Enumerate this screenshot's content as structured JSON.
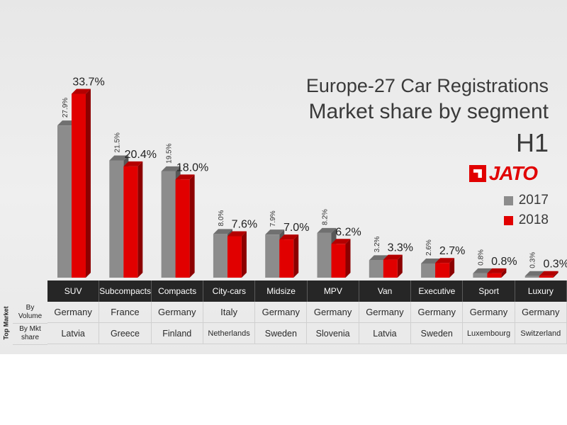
{
  "title": {
    "line1": "Europe-27 Car Registrations",
    "line2": "Market share by segment",
    "line3": "H1"
  },
  "brand": {
    "name": "JATO",
    "color": "#e10000"
  },
  "legend": [
    {
      "label": "2017",
      "color": "#8c8c8c"
    },
    {
      "label": "2018",
      "color": "#e10000"
    }
  ],
  "chart_data": {
    "type": "bar",
    "title": "Europe-27 Car Registrations Market share by segment H1",
    "categories": [
      "SUV",
      "Subcompacts",
      "Compacts",
      "City-cars",
      "Midsize",
      "MPV",
      "Van",
      "Executive",
      "Sport",
      "Luxury"
    ],
    "series": [
      {
        "name": "2017",
        "color": "#8c8c8c",
        "values": [
          27.9,
          21.5,
          19.5,
          8.0,
          7.9,
          8.2,
          3.2,
          2.6,
          0.8,
          0.3
        ],
        "labels": [
          "27.9%",
          "21.5%",
          "19.5%",
          "8.0%",
          "7.9%",
          "8.2%",
          "3.2%",
          "2.6%",
          "0.8%",
          "0.3%"
        ]
      },
      {
        "name": "2018",
        "color": "#e10000",
        "values": [
          33.7,
          20.4,
          18.0,
          7.6,
          7.0,
          6.2,
          3.3,
          2.7,
          0.8,
          0.3
        ],
        "labels": [
          "33.7%",
          "20.4%",
          "18.0%",
          "7.6%",
          "7.0%",
          "6.2%",
          "3.3%",
          "2.7%",
          "0.8%",
          "0.3%"
        ]
      }
    ],
    "ylim": [
      0,
      35
    ],
    "grid": false,
    "legend_position": "right"
  },
  "table": {
    "side_label": "Top Market",
    "row_labels": [
      {
        "line1": "By",
        "line2": "Volume"
      },
      {
        "line1": "By Mkt",
        "line2": "share"
      }
    ],
    "by_volume": [
      "Germany",
      "France",
      "Germany",
      "Italy",
      "Germany",
      "Germany",
      "Germany",
      "Germany",
      "Germany",
      "Germany"
    ],
    "by_mkt_share": [
      "Latvia",
      "Greece",
      "Finland",
      "Netherlands",
      "Sweden",
      "Slovenia",
      "Latvia",
      "Sweden",
      "Luxembourg",
      "Switzerland"
    ]
  }
}
